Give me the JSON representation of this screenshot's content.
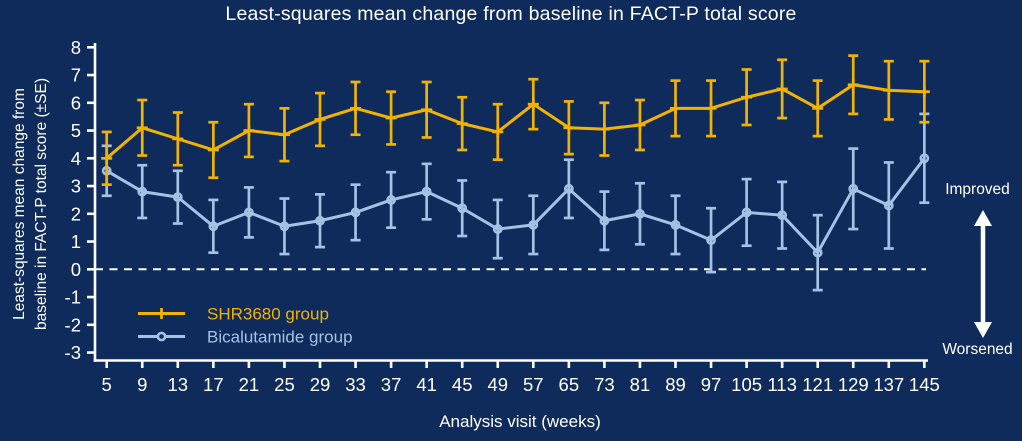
{
  "title": "Least-squares mean change from baseline in FACT-P total score",
  "axes": {
    "y_label_line1": "Least-squares mean change from",
    "y_label_line2": "baseline in FACT-P total score (±SE)",
    "x_label": "Analysis visit (weeks)",
    "y_ticks": [
      8,
      7,
      6,
      5,
      4,
      3,
      2,
      1,
      0,
      -1,
      -2,
      -3
    ],
    "y_min": -3,
    "y_max": 8
  },
  "annotations": {
    "improved": "Improved",
    "worsened": "Worsened"
  },
  "colors": {
    "background": "#0e2b5b",
    "text": "#ffffff",
    "axis": "#ffffff",
    "zero_line": "#ffffff",
    "shr3680": "#f2b300",
    "bicalutamide": "#a3c2e4"
  },
  "legend": {
    "items": [
      {
        "label": "SHR3680 group",
        "series": "SHR3680 group"
      },
      {
        "label": "Bicalutamide group",
        "series": "Bicalutamide group"
      }
    ]
  },
  "chart_data": {
    "type": "line",
    "title": "Least-squares mean change from baseline in FACT-P total score",
    "xlabel": "Analysis visit (weeks)",
    "ylabel": "Least-squares mean change from baseline in FACT-P total score (±SE)",
    "ylim": [
      -3,
      8
    ],
    "grid": false,
    "zero_reference_line": 0,
    "legend_position": "inside-bottom-left",
    "error_bars": "±SE",
    "categories": [
      5,
      9,
      13,
      17,
      21,
      25,
      29,
      33,
      37,
      41,
      45,
      49,
      57,
      65,
      73,
      81,
      89,
      97,
      105,
      113,
      121,
      129,
      137,
      145
    ],
    "series": [
      {
        "name": "SHR3680 group",
        "color": "#f2b300",
        "marker": "plus",
        "values": [
          4.0,
          5.1,
          4.7,
          4.3,
          5.0,
          4.85,
          5.4,
          5.8,
          5.45,
          5.75,
          5.25,
          4.95,
          5.95,
          5.1,
          5.05,
          5.2,
          5.8,
          5.8,
          6.2,
          6.5,
          5.8,
          6.65,
          6.45,
          6.4
        ],
        "se": [
          0.95,
          1.0,
          0.95,
          1.0,
          0.95,
          0.95,
          0.95,
          0.95,
          0.95,
          1.0,
          0.95,
          1.0,
          0.9,
          0.95,
          0.95,
          0.9,
          1.0,
          1.0,
          1.0,
          1.05,
          1.0,
          1.05,
          1.05,
          1.1
        ]
      },
      {
        "name": "Bicalutamide group",
        "color": "#a3c2e4",
        "marker": "circle",
        "values": [
          3.55,
          2.8,
          2.6,
          1.55,
          2.05,
          1.55,
          1.75,
          2.05,
          2.5,
          2.8,
          2.2,
          1.45,
          1.6,
          2.9,
          1.75,
          2.0,
          1.6,
          1.05,
          2.05,
          1.95,
          0.6,
          2.9,
          2.3,
          4.0
        ],
        "se": [
          0.9,
          0.95,
          0.95,
          0.95,
          0.9,
          1.0,
          0.95,
          1.0,
          1.0,
          1.0,
          1.0,
          1.05,
          1.05,
          1.05,
          1.05,
          1.1,
          1.05,
          1.15,
          1.2,
          1.2,
          1.35,
          1.45,
          1.55,
          1.6
        ]
      }
    ]
  }
}
